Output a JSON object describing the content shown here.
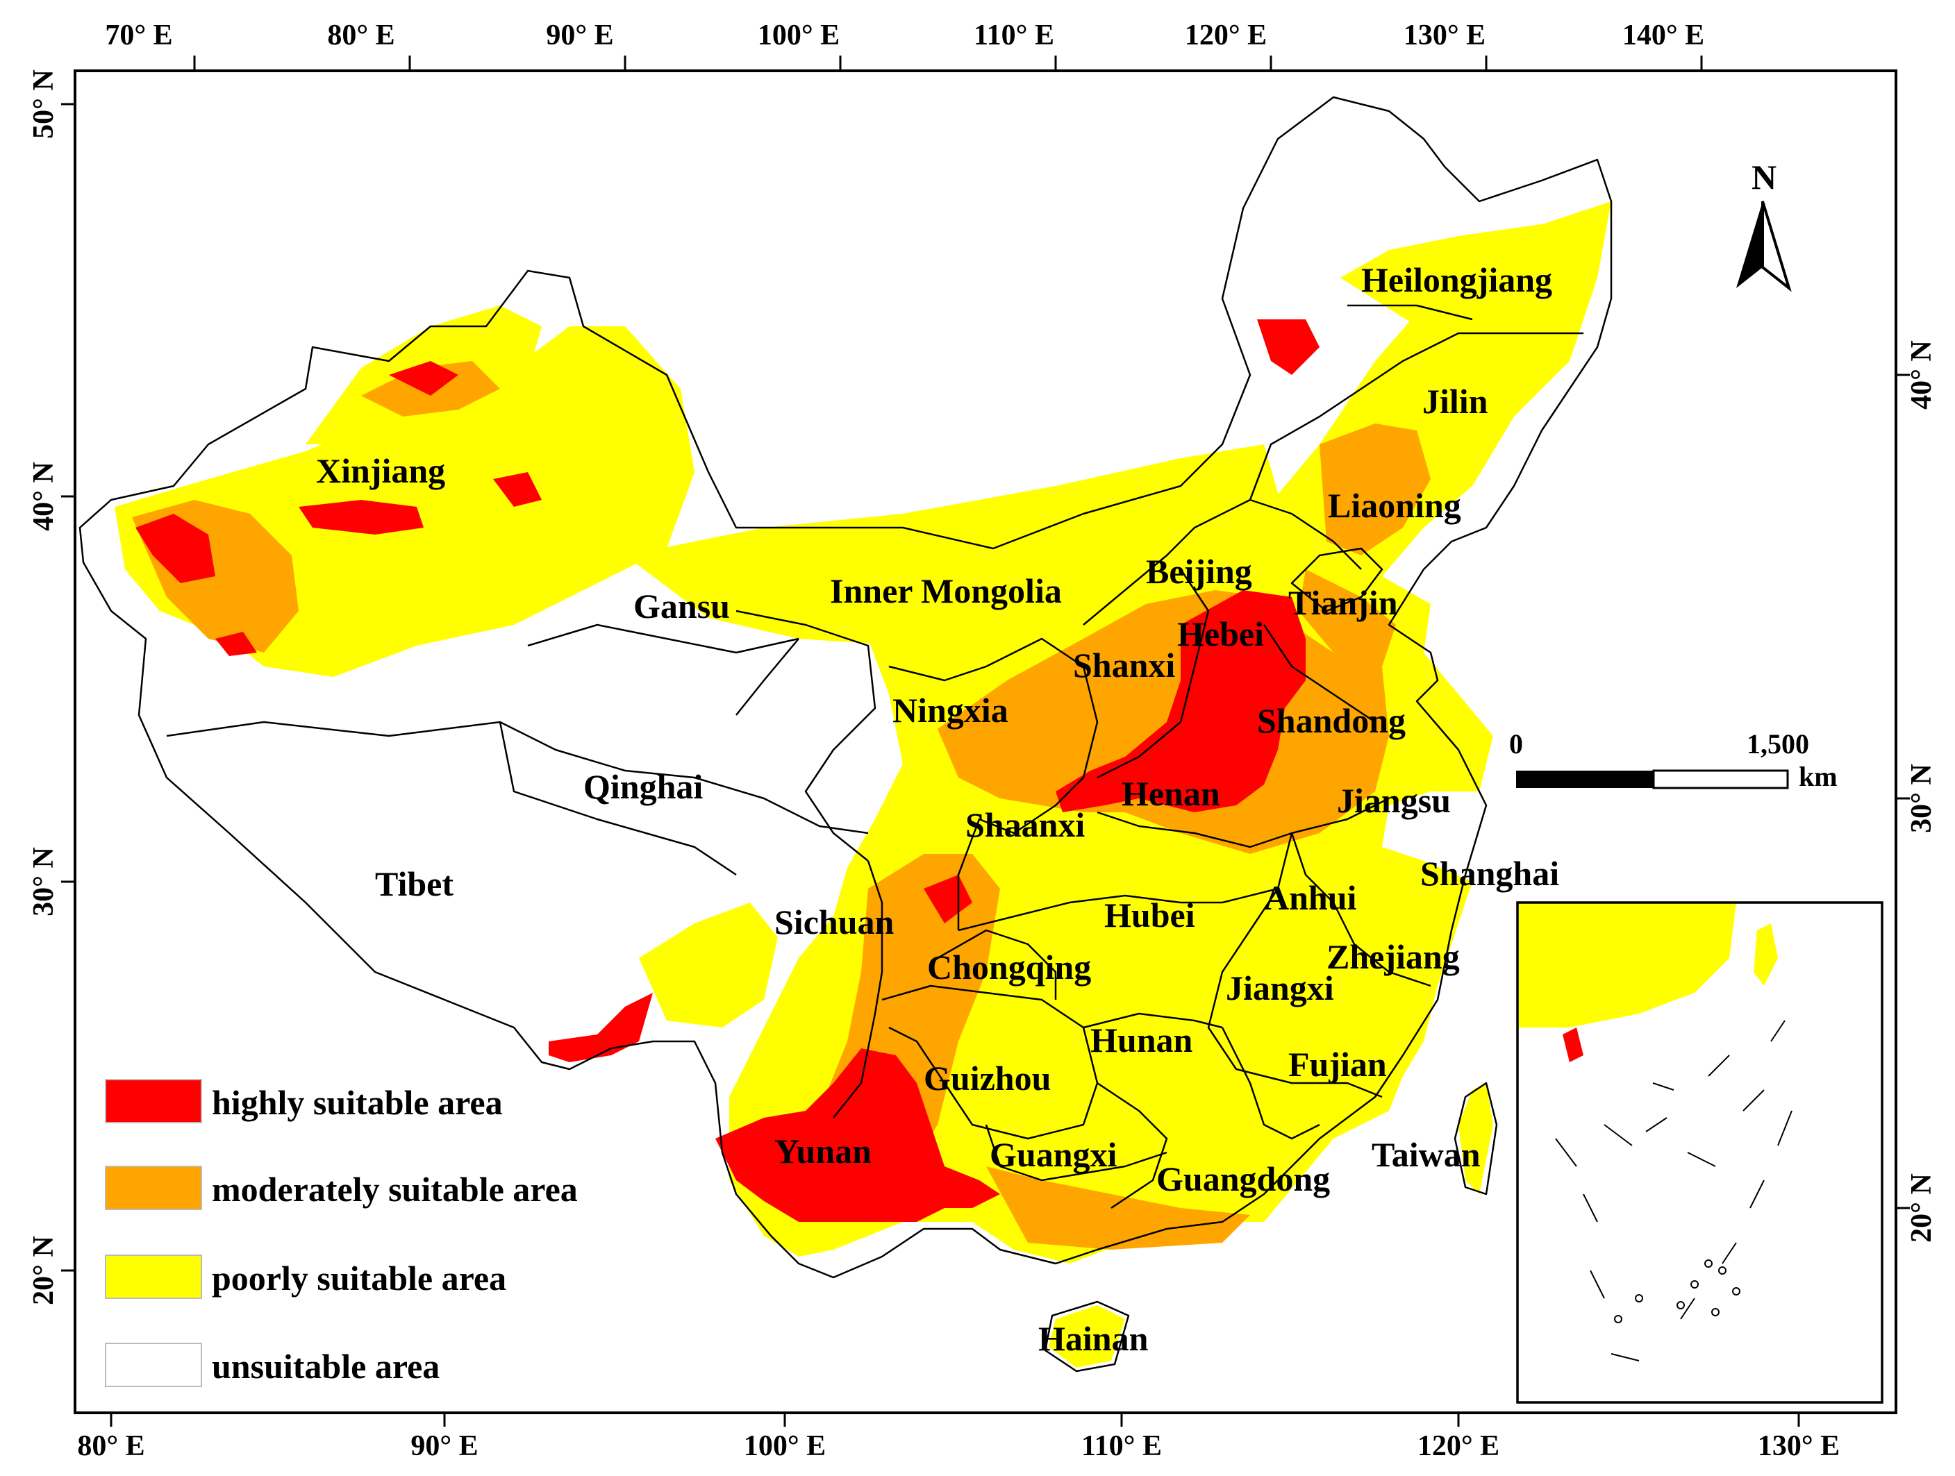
{
  "top_ticks": [
    "70° E",
    "80° E",
    "90° E",
    "100° E",
    "110° E",
    "120° E",
    "130° E",
    "140° E"
  ],
  "bottom_ticks": [
    "80° E",
    "90° E",
    "100° E",
    "110° E",
    "120° E",
    "130° E"
  ],
  "left_ticks": [
    "50° N",
    "40° N",
    "30° N",
    "20° N"
  ],
  "right_ticks": [
    "40° N",
    "30° N",
    "20° N"
  ],
  "provinces": {
    "xinjiang": "Xinjiang",
    "gansu": "Gansu",
    "inner_mongolia": "Inner Mongolia",
    "heilongjiang": "Heilongjiang",
    "jilin": "Jilin",
    "liaoning": "Liaoning",
    "beijing": "Beijing",
    "tianjin": "Tianjin",
    "hebei": "Hebei",
    "shanxi": "Shanxi",
    "shandong": "Shandong",
    "ningxia": "Ningxia",
    "qinghai": "Qinghai",
    "tibet": "Tibet",
    "henan": "Henan",
    "jiangsu": "Jiangsu",
    "shaanxi": "Shaanxi",
    "shanghai": "Shanghai",
    "anhui": "Anhui",
    "hubei": "Hubei",
    "sichuan": "Sichuan",
    "chongqing": "Chongqing",
    "zhejiang": "Zhejiang",
    "jiangxi": "Jiangxi",
    "hunan": "Hunan",
    "fujian": "Fujian",
    "guizhou": "Guizhou",
    "yunan": "Yunan",
    "guangxi": "Guangxi",
    "guangdong": "Guangdong",
    "taiwan": "Taiwan",
    "hainan": "Hainan"
  },
  "legend": [
    {
      "label": "highly suitable area",
      "color": "#ff0000"
    },
    {
      "label": "moderately suitable area",
      "color": "#ffa500"
    },
    {
      "label": "poorly suitable area",
      "color": "#ffff00"
    },
    {
      "label": "unsuitable area",
      "color": "#ffffff"
    }
  ],
  "scale_bar": {
    "start": "0",
    "end": "1,500",
    "unit": "km"
  },
  "north_arrow": {
    "label": "N",
    "icon": "north-arrow-icon"
  },
  "colors": {
    "high": "#ff0000",
    "moderate": "#ffa500",
    "poor": "#ffff00",
    "unsuitable": "#ffffff",
    "border": "#000000"
  }
}
